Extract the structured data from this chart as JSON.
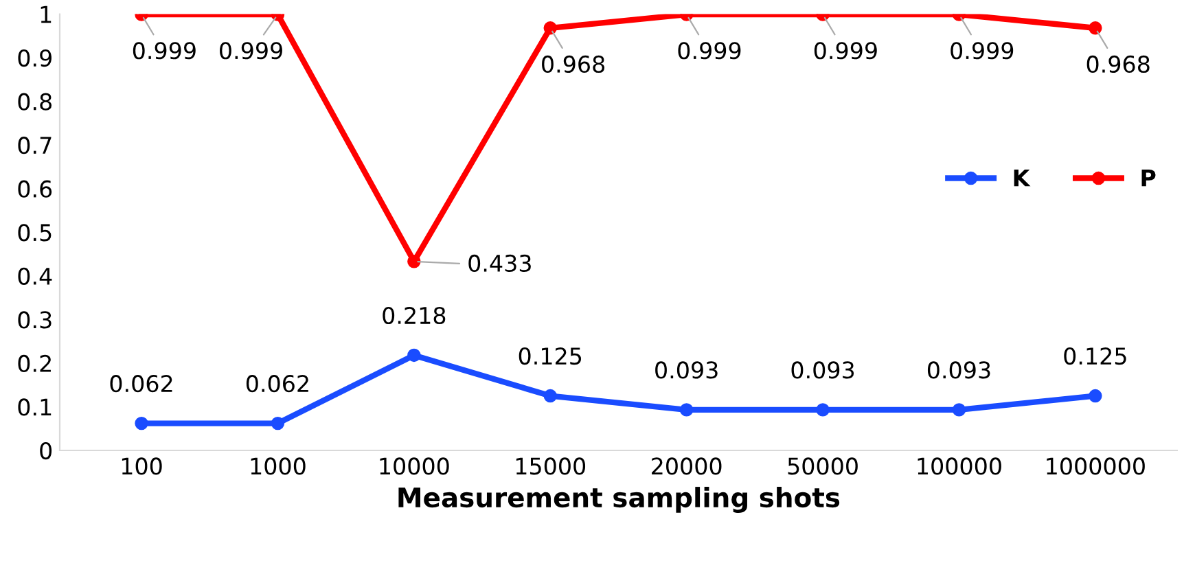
{
  "chart_data": {
    "type": "line",
    "xlabel": "Measurement sampling shots",
    "categories": [
      "100",
      "1000",
      "10000",
      "15000",
      "20000",
      "50000",
      "100000",
      "1000000"
    ],
    "series": [
      {
        "name": "K",
        "color": "#1a4cff",
        "values": [
          0.062,
          0.062,
          0.218,
          0.125,
          0.093,
          0.093,
          0.093,
          0.125
        ]
      },
      {
        "name": "P",
        "color": "#ff0000",
        "values": [
          0.999,
          0.999,
          0.433,
          0.968,
          0.999,
          0.999,
          0.999,
          0.968
        ]
      }
    ],
    "ylim": [
      0,
      1
    ],
    "yticks": [
      0,
      0.1,
      0.2,
      0.3,
      0.4,
      0.5,
      0.6,
      0.7,
      0.8,
      0.9,
      1
    ],
    "grid": false,
    "legend": "right",
    "marker": "circle",
    "line_style": "solid",
    "data_labels": true
  }
}
